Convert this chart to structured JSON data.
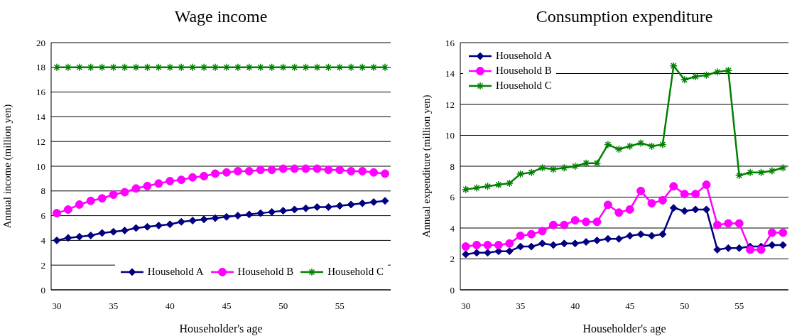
{
  "chart_data": [
    {
      "type": "line",
      "title": "Wage income",
      "xlabel": "Householder's age",
      "ylabel": "Annual income (million yen)",
      "x": [
        30,
        31,
        32,
        33,
        34,
        35,
        36,
        37,
        38,
        39,
        40,
        41,
        42,
        43,
        44,
        45,
        46,
        47,
        48,
        49,
        50,
        51,
        52,
        53,
        54,
        55,
        56,
        57,
        58,
        59
      ],
      "xlim": [
        29.5,
        59.5
      ],
      "xticks": [
        30,
        35,
        40,
        45,
        50,
        55
      ],
      "ylim": [
        0,
        20
      ],
      "yticks": [
        0,
        2,
        4,
        6,
        8,
        10,
        12,
        14,
        16,
        18,
        20
      ],
      "grid": "y",
      "legend": "bottom right",
      "series": [
        {
          "name": "Household A",
          "color": "#000080",
          "marker": "diamond",
          "values": [
            4.0,
            4.2,
            4.3,
            4.4,
            4.6,
            4.7,
            4.8,
            5.0,
            5.1,
            5.2,
            5.3,
            5.5,
            5.6,
            5.7,
            5.8,
            5.9,
            6.0,
            6.1,
            6.2,
            6.3,
            6.4,
            6.5,
            6.6,
            6.7,
            6.7,
            6.8,
            6.9,
            7.0,
            7.1,
            7.2
          ]
        },
        {
          "name": "Household B",
          "color": "#ff00ff",
          "marker": "circle",
          "values": [
            6.2,
            6.5,
            6.9,
            7.2,
            7.4,
            7.7,
            7.9,
            8.2,
            8.4,
            8.6,
            8.8,
            8.9,
            9.1,
            9.2,
            9.4,
            9.5,
            9.6,
            9.6,
            9.7,
            9.7,
            9.8,
            9.8,
            9.8,
            9.8,
            9.7,
            9.7,
            9.6,
            9.6,
            9.5,
            9.4
          ]
        },
        {
          "name": "Household C",
          "color": "#008000",
          "marker": "cross",
          "values": [
            18,
            18,
            18,
            18,
            18,
            18,
            18,
            18,
            18,
            18,
            18,
            18,
            18,
            18,
            18,
            18,
            18,
            18,
            18,
            18,
            18,
            18,
            18,
            18,
            18,
            18,
            18,
            18,
            18,
            18
          ]
        }
      ]
    },
    {
      "type": "line",
      "title": "Consumption expenditure",
      "xlabel": "Householder's age",
      "ylabel": "Annual expenditure (million yen)",
      "x": [
        30,
        31,
        32,
        33,
        34,
        35,
        36,
        37,
        38,
        39,
        40,
        41,
        42,
        43,
        44,
        45,
        46,
        47,
        48,
        49,
        50,
        51,
        52,
        53,
        54,
        55,
        56,
        57,
        58,
        59
      ],
      "xlim": [
        29.5,
        59.5
      ],
      "xticks": [
        30,
        35,
        40,
        45,
        50,
        55
      ],
      "ylim": [
        0,
        16
      ],
      "yticks": [
        0,
        2,
        4,
        6,
        8,
        10,
        12,
        14,
        16
      ],
      "grid": "y",
      "legend": "top left",
      "series": [
        {
          "name": "Household A",
          "color": "#000080",
          "marker": "diamond",
          "values": [
            2.3,
            2.4,
            2.4,
            2.5,
            2.5,
            2.8,
            2.8,
            3.0,
            2.9,
            3.0,
            3.0,
            3.1,
            3.2,
            3.3,
            3.3,
            3.5,
            3.6,
            3.5,
            3.6,
            5.3,
            5.1,
            5.2,
            5.2,
            2.6,
            2.7,
            2.7,
            2.8,
            2.8,
            2.9,
            2.9
          ]
        },
        {
          "name": "Household B",
          "color": "#ff00ff",
          "marker": "circle",
          "values": [
            2.8,
            2.9,
            2.9,
            2.9,
            3.0,
            3.5,
            3.6,
            3.8,
            4.2,
            4.2,
            4.5,
            4.4,
            4.4,
            5.5,
            5.0,
            5.2,
            6.4,
            5.6,
            5.8,
            6.7,
            6.2,
            6.2,
            6.8,
            4.2,
            4.3,
            4.3,
            2.6,
            2.6,
            3.7,
            3.7
          ]
        },
        {
          "name": "Household C",
          "color": "#008000",
          "marker": "cross",
          "values": [
            6.5,
            6.6,
            6.7,
            6.8,
            6.9,
            7.5,
            7.6,
            7.9,
            7.8,
            7.9,
            8.0,
            8.2,
            8.2,
            9.4,
            9.1,
            9.3,
            9.5,
            9.3,
            9.4,
            14.5,
            13.6,
            13.8,
            13.9,
            14.1,
            14.2,
            7.4,
            7.6,
            7.6,
            7.7,
            7.9
          ]
        }
      ]
    }
  ]
}
